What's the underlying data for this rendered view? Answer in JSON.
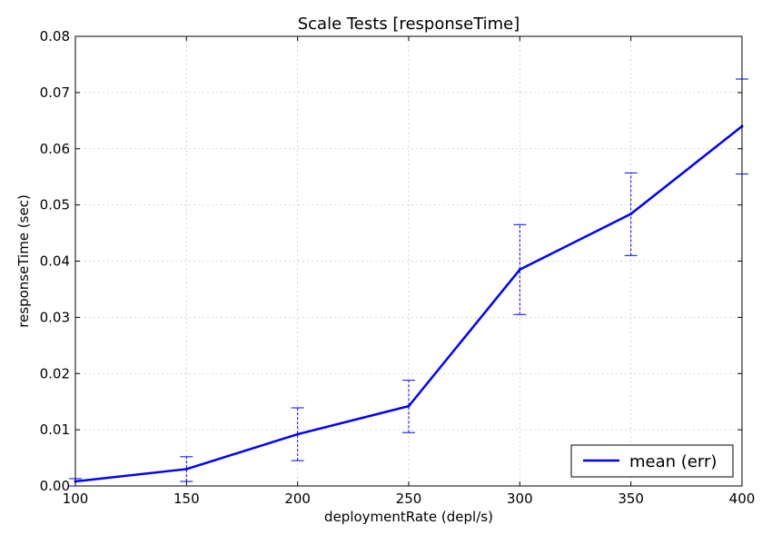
{
  "chart_data": {
    "type": "line",
    "title": "Scale Tests [responseTime]",
    "xlabel": "deploymentRate (depl/s)",
    "ylabel": "responseTime (sec)",
    "xlim": [
      100,
      400
    ],
    "ylim": [
      0.0,
      0.08
    ],
    "x_ticks": [
      100,
      150,
      200,
      250,
      300,
      350,
      400
    ],
    "y_ticks": [
      0.0,
      0.01,
      0.02,
      0.03,
      0.04,
      0.05,
      0.06,
      0.07,
      0.08
    ],
    "x_tick_labels": [
      "100",
      "150",
      "200",
      "250",
      "300",
      "350",
      "400"
    ],
    "y_tick_labels": [
      "0.00",
      "0.01",
      "0.02",
      "0.03",
      "0.04",
      "0.05",
      "0.06",
      "0.07",
      "0.08"
    ],
    "grid": true,
    "legend_position": "bottom-right",
    "series": [
      {
        "name": "mean (err)",
        "color": "#0000ff",
        "x": [
          100,
          150,
          200,
          250,
          300,
          350,
          400
        ],
        "y": [
          0.0008,
          0.003,
          0.0092,
          0.0142,
          0.0385,
          0.0484,
          0.064
        ],
        "err_low": [
          0.0,
          0.0008,
          0.0045,
          0.0095,
          0.0305,
          0.041,
          0.0555
        ],
        "err_high": [
          0.0013,
          0.0052,
          0.0139,
          0.0188,
          0.0465,
          0.0557,
          0.0724
        ]
      }
    ]
  }
}
